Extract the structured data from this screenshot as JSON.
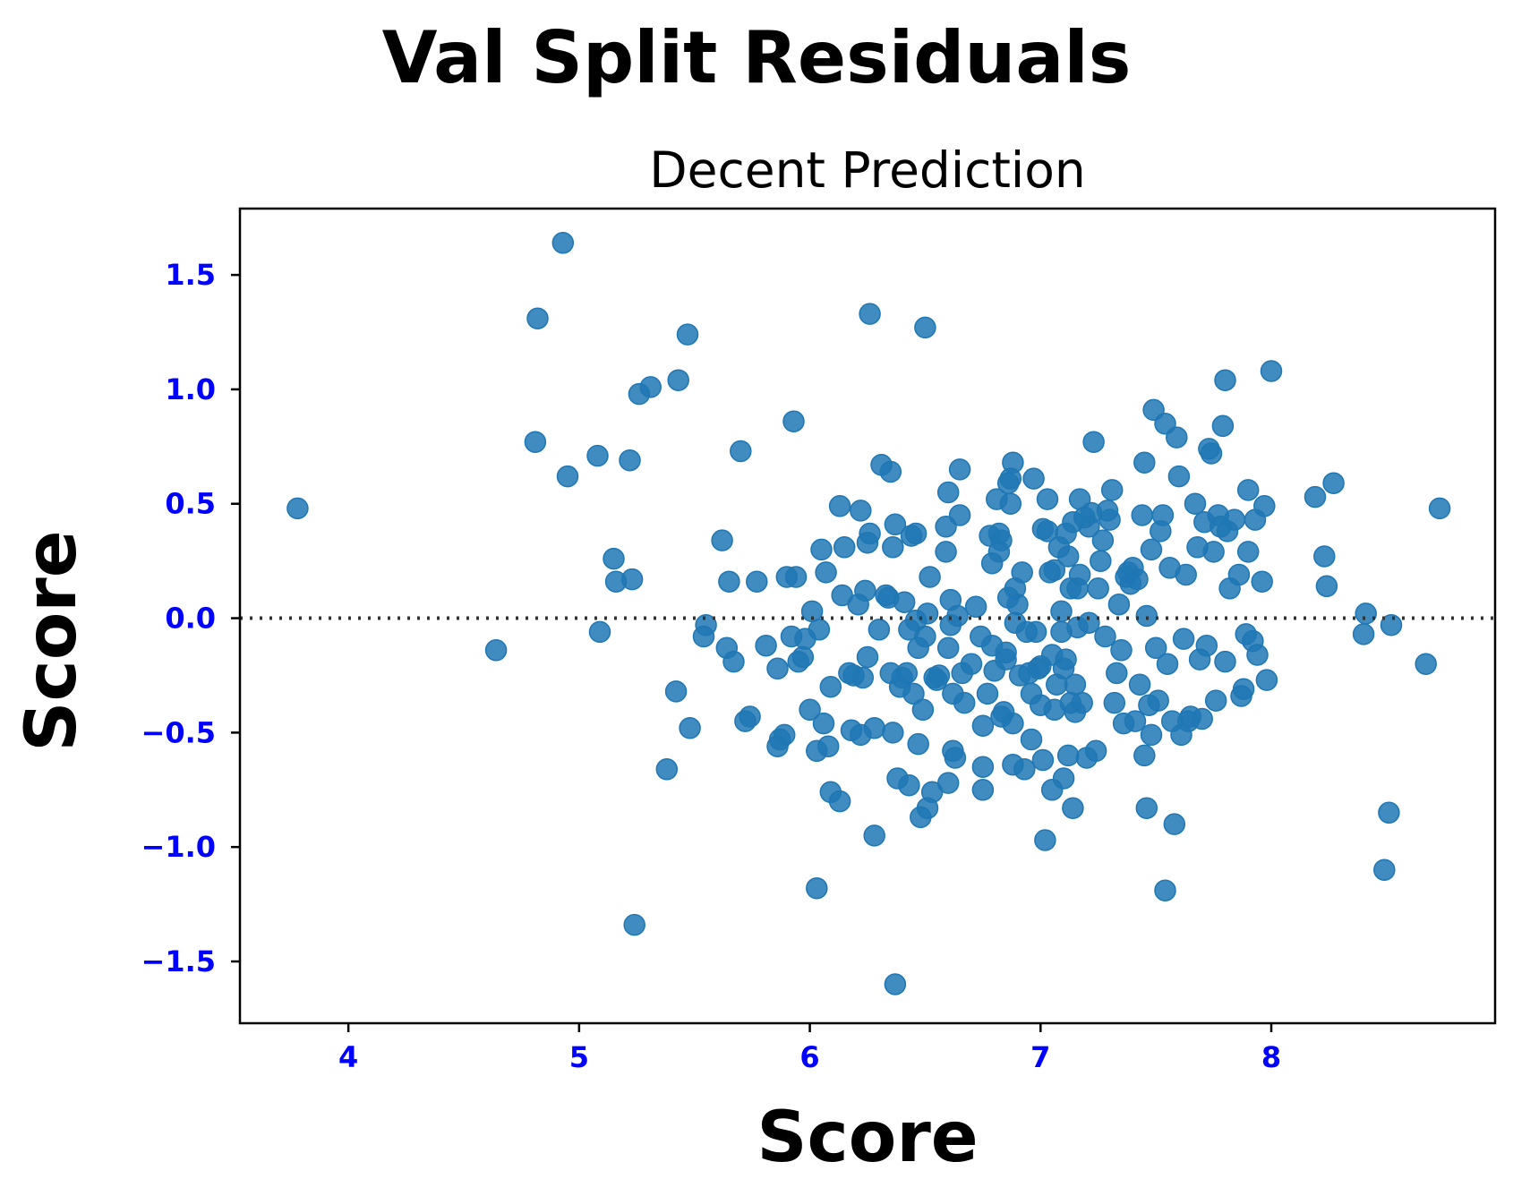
{
  "chart_data": {
    "type": "scatter",
    "title": "Val Split Residuals",
    "subtitle": "Decent Prediction",
    "xlabel": "Score",
    "ylabel": "Score",
    "xlim": [
      3.53,
      8.97
    ],
    "ylim": [
      -1.77,
      1.79
    ],
    "xticks": [
      4,
      5,
      6,
      7,
      8
    ],
    "xtick_labels": [
      "4",
      "5",
      "6",
      "7",
      "8"
    ],
    "yticks": [
      -1.5,
      -1.0,
      -0.5,
      0.0,
      0.5,
      1.0,
      1.5
    ],
    "ytick_labels": [
      "−1.5",
      "−1.0",
      "−0.5",
      "0.0",
      "0.5",
      "1.0",
      "1.5"
    ],
    "tick_label_color": "#0000ff",
    "marker_color": "#1f77b4",
    "reference_line": {
      "y": 0.0,
      "style": "dotted",
      "color": "#333333"
    },
    "grid": false,
    "points": [
      [
        3.78,
        0.48
      ],
      [
        4.64,
        -0.14
      ],
      [
        4.81,
        0.77
      ],
      [
        4.82,
        1.31
      ],
      [
        4.93,
        1.64
      ],
      [
        4.95,
        0.62
      ],
      [
        5.08,
        0.71
      ],
      [
        5.09,
        -0.06
      ],
      [
        5.15,
        0.26
      ],
      [
        5.16,
        0.16
      ],
      [
        5.22,
        0.69
      ],
      [
        5.23,
        0.17
      ],
      [
        5.24,
        -1.34
      ],
      [
        5.26,
        0.98
      ],
      [
        5.31,
        1.01
      ],
      [
        5.38,
        -0.66
      ],
      [
        5.42,
        -0.32
      ],
      [
        5.43,
        1.04
      ],
      [
        5.47,
        1.24
      ],
      [
        5.48,
        -0.48
      ],
      [
        5.54,
        -0.08
      ],
      [
        5.55,
        -0.03
      ],
      [
        5.62,
        0.34
      ],
      [
        5.64,
        -0.13
      ],
      [
        5.65,
        0.16
      ],
      [
        5.67,
        -0.19
      ],
      [
        5.7,
        0.73
      ],
      [
        5.72,
        -0.45
      ],
      [
        5.74,
        -0.43
      ],
      [
        5.77,
        0.16
      ],
      [
        5.81,
        -0.12
      ],
      [
        5.86,
        -0.56
      ],
      [
        5.86,
        -0.22
      ],
      [
        5.87,
        -0.53
      ],
      [
        5.89,
        -0.51
      ],
      [
        5.9,
        0.18
      ],
      [
        5.92,
        -0.08
      ],
      [
        5.93,
        0.86
      ],
      [
        5.94,
        0.18
      ],
      [
        5.95,
        -0.19
      ],
      [
        5.97,
        -0.17
      ],
      [
        5.98,
        -0.09
      ],
      [
        6.0,
        -0.4
      ],
      [
        6.01,
        0.03
      ],
      [
        6.03,
        -0.58
      ],
      [
        6.03,
        -1.18
      ],
      [
        6.04,
        -0.05
      ],
      [
        6.05,
        0.3
      ],
      [
        6.06,
        -0.46
      ],
      [
        6.07,
        0.2
      ],
      [
        6.08,
        -0.56
      ],
      [
        6.09,
        -0.3
      ],
      [
        6.09,
        -0.76
      ],
      [
        6.13,
        0.49
      ],
      [
        6.13,
        -0.8
      ],
      [
        6.14,
        0.1
      ],
      [
        6.15,
        0.31
      ],
      [
        6.17,
        -0.24
      ],
      [
        6.18,
        -0.49
      ],
      [
        6.19,
        -0.25
      ],
      [
        6.21,
        0.06
      ],
      [
        6.22,
        0.47
      ],
      [
        6.22,
        -0.51
      ],
      [
        6.23,
        -0.26
      ],
      [
        6.24,
        0.12
      ],
      [
        6.25,
        -0.17
      ],
      [
        6.25,
        0.33
      ],
      [
        6.26,
        0.37
      ],
      [
        6.26,
        1.33
      ],
      [
        6.28,
        -0.48
      ],
      [
        6.28,
        -0.95
      ],
      [
        6.3,
        -0.05
      ],
      [
        6.31,
        0.67
      ],
      [
        6.33,
        0.1
      ],
      [
        6.34,
        0.09
      ],
      [
        6.35,
        0.64
      ],
      [
        6.35,
        -0.24
      ],
      [
        6.36,
        -0.5
      ],
      [
        6.36,
        0.31
      ],
      [
        6.37,
        0.41
      ],
      [
        6.37,
        -1.6
      ],
      [
        6.38,
        -0.7
      ],
      [
        6.39,
        -0.3
      ],
      [
        6.4,
        -0.26
      ],
      [
        6.41,
        0.07
      ],
      [
        6.42,
        -0.24
      ],
      [
        6.43,
        -0.05
      ],
      [
        6.43,
        -0.73
      ],
      [
        6.44,
        0.36
      ],
      [
        6.45,
        -0.33
      ],
      [
        6.46,
        0.37
      ],
      [
        6.46,
        -0.01
      ],
      [
        6.47,
        -0.13
      ],
      [
        6.47,
        -0.55
      ],
      [
        6.48,
        -0.87
      ],
      [
        6.49,
        -0.4
      ],
      [
        6.5,
        1.27
      ],
      [
        6.5,
        -0.08
      ],
      [
        6.51,
        0.02
      ],
      [
        6.51,
        -0.83
      ],
      [
        6.52,
        0.18
      ],
      [
        6.53,
        -0.76
      ],
      [
        6.54,
        -0.26
      ],
      [
        6.55,
        -0.27
      ],
      [
        6.56,
        -0.25
      ],
      [
        6.59,
        0.4
      ],
      [
        6.59,
        0.29
      ],
      [
        6.6,
        0.55
      ],
      [
        6.6,
        -0.13
      ],
      [
        6.6,
        -0.72
      ],
      [
        6.61,
        -0.03
      ],
      [
        6.61,
        0.08
      ],
      [
        6.62,
        -0.33
      ],
      [
        6.62,
        -0.58
      ],
      [
        6.63,
        -0.61
      ],
      [
        6.64,
        0.01
      ],
      [
        6.65,
        0.45
      ],
      [
        6.65,
        0.65
      ],
      [
        6.66,
        -0.24
      ],
      [
        6.67,
        -0.37
      ],
      [
        6.7,
        -0.2
      ],
      [
        6.72,
        0.05
      ],
      [
        6.74,
        -0.08
      ],
      [
        6.75,
        -0.47
      ],
      [
        6.75,
        -0.65
      ],
      [
        6.75,
        -0.75
      ],
      [
        6.77,
        -0.33
      ],
      [
        6.78,
        0.36
      ],
      [
        6.79,
        0.24
      ],
      [
        6.79,
        -0.12
      ],
      [
        6.8,
        -0.23
      ],
      [
        6.81,
        0.52
      ],
      [
        6.82,
        0.29
      ],
      [
        6.82,
        0.37
      ],
      [
        6.83,
        0.34
      ],
      [
        6.83,
        -0.43
      ],
      [
        6.84,
        -0.41
      ],
      [
        6.85,
        -0.15
      ],
      [
        6.85,
        -0.18
      ],
      [
        6.86,
        0.59
      ],
      [
        6.86,
        0.09
      ],
      [
        6.87,
        0.61
      ],
      [
        6.87,
        0.5
      ],
      [
        6.88,
        0.68
      ],
      [
        6.88,
        -0.46
      ],
      [
        6.88,
        -0.64
      ],
      [
        6.89,
        0.13
      ],
      [
        6.89,
        -0.02
      ],
      [
        6.9,
        0.06
      ],
      [
        6.91,
        -0.25
      ],
      [
        6.92,
        0.2
      ],
      [
        6.93,
        -0.66
      ],
      [
        6.94,
        -0.06
      ],
      [
        6.95,
        -0.24
      ],
      [
        6.96,
        -0.33
      ],
      [
        6.96,
        -0.53
      ],
      [
        6.97,
        0.61
      ],
      [
        6.98,
        -0.06
      ],
      [
        6.99,
        -0.22
      ],
      [
        7.0,
        -0.21
      ],
      [
        7.0,
        -0.38
      ],
      [
        7.01,
        0.39
      ],
      [
        7.01,
        -0.62
      ],
      [
        7.02,
        -0.97
      ],
      [
        7.03,
        0.52
      ],
      [
        7.03,
        0.38
      ],
      [
        7.04,
        0.2
      ],
      [
        7.05,
        -0.16
      ],
      [
        7.05,
        -0.75
      ],
      [
        7.06,
        0.21
      ],
      [
        7.06,
        -0.4
      ],
      [
        7.07,
        -0.29
      ],
      [
        7.08,
        0.31
      ],
      [
        7.09,
        0.03
      ],
      [
        7.09,
        -0.06
      ],
      [
        7.1,
        -0.7
      ],
      [
        7.1,
        -0.22
      ],
      [
        7.11,
        0.37
      ],
      [
        7.11,
        -0.18
      ],
      [
        7.12,
        0.27
      ],
      [
        7.12,
        -0.6
      ],
      [
        7.13,
        0.13
      ],
      [
        7.13,
        -0.37
      ],
      [
        7.14,
        -0.83
      ],
      [
        7.14,
        0.42
      ],
      [
        7.15,
        -0.41
      ],
      [
        7.15,
        -0.29
      ],
      [
        7.16,
        0.13
      ],
      [
        7.16,
        -0.04
      ],
      [
        7.17,
        0.19
      ],
      [
        7.17,
        0.52
      ],
      [
        7.18,
        -0.37
      ],
      [
        7.19,
        0.44
      ],
      [
        7.2,
        -0.61
      ],
      [
        7.21,
        0.4
      ],
      [
        7.21,
        -0.02
      ],
      [
        7.22,
        0.46
      ],
      [
        7.23,
        0.77
      ],
      [
        7.24,
        -0.58
      ],
      [
        7.25,
        0.13
      ],
      [
        7.26,
        0.25
      ],
      [
        7.27,
        0.34
      ],
      [
        7.28,
        -0.08
      ],
      [
        7.29,
        0.47
      ],
      [
        7.3,
        0.43
      ],
      [
        7.31,
        0.56
      ],
      [
        7.32,
        -0.37
      ],
      [
        7.33,
        -0.24
      ],
      [
        7.34,
        0.06
      ],
      [
        7.35,
        -0.14
      ],
      [
        7.36,
        -0.46
      ],
      [
        7.37,
        0.18
      ],
      [
        7.38,
        0.2
      ],
      [
        7.39,
        0.15
      ],
      [
        7.4,
        0.22
      ],
      [
        7.41,
        -0.45
      ],
      [
        7.42,
        0.17
      ],
      [
        7.43,
        -0.29
      ],
      [
        7.44,
        0.45
      ],
      [
        7.45,
        -0.6
      ],
      [
        7.45,
        0.68
      ],
      [
        7.46,
        -0.83
      ],
      [
        7.46,
        0.01
      ],
      [
        7.47,
        -0.38
      ],
      [
        7.48,
        0.3
      ],
      [
        7.48,
        -0.51
      ],
      [
        7.49,
        0.91
      ],
      [
        7.5,
        -0.13
      ],
      [
        7.51,
        -0.36
      ],
      [
        7.52,
        0.38
      ],
      [
        7.53,
        0.45
      ],
      [
        7.54,
        0.85
      ],
      [
        7.54,
        -1.19
      ],
      [
        7.55,
        -0.2
      ],
      [
        7.56,
        0.22
      ],
      [
        7.57,
        -0.45
      ],
      [
        7.58,
        -0.9
      ],
      [
        7.59,
        0.79
      ],
      [
        7.6,
        0.62
      ],
      [
        7.61,
        -0.51
      ],
      [
        7.62,
        -0.09
      ],
      [
        7.63,
        0.19
      ],
      [
        7.64,
        -0.45
      ],
      [
        7.65,
        -0.43
      ],
      [
        7.67,
        0.5
      ],
      [
        7.68,
        0.31
      ],
      [
        7.69,
        -0.18
      ],
      [
        7.7,
        -0.44
      ],
      [
        7.71,
        0.42
      ],
      [
        7.72,
        -0.12
      ],
      [
        7.73,
        0.74
      ],
      [
        7.74,
        0.72
      ],
      [
        7.75,
        0.29
      ],
      [
        7.76,
        -0.36
      ],
      [
        7.77,
        0.45
      ],
      [
        7.78,
        0.4
      ],
      [
        7.79,
        0.84
      ],
      [
        7.8,
        1.04
      ],
      [
        7.8,
        -0.19
      ],
      [
        7.81,
        0.38
      ],
      [
        7.82,
        0.13
      ],
      [
        7.84,
        0.43
      ],
      [
        7.86,
        0.19
      ],
      [
        7.87,
        -0.34
      ],
      [
        7.88,
        -0.31
      ],
      [
        7.89,
        -0.07
      ],
      [
        7.9,
        0.56
      ],
      [
        7.9,
        0.29
      ],
      [
        7.92,
        -0.1
      ],
      [
        7.93,
        0.43
      ],
      [
        7.94,
        -0.16
      ],
      [
        7.96,
        0.16
      ],
      [
        7.97,
        0.49
      ],
      [
        7.98,
        -0.27
      ],
      [
        8.0,
        1.08
      ],
      [
        8.19,
        0.53
      ],
      [
        8.23,
        0.27
      ],
      [
        8.24,
        0.14
      ],
      [
        8.27,
        0.59
      ],
      [
        8.4,
        -0.07
      ],
      [
        8.41,
        0.02
      ],
      [
        8.49,
        -1.1
      ],
      [
        8.51,
        -0.85
      ],
      [
        8.52,
        -0.03
      ],
      [
        8.67,
        -0.2
      ],
      [
        8.73,
        0.48
      ]
    ]
  }
}
